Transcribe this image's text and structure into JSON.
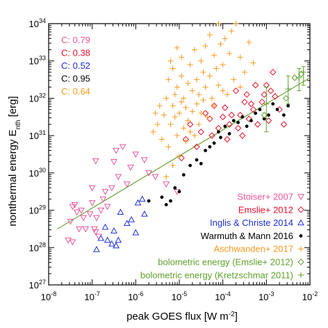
{
  "chart_data": {
    "type": "scatter",
    "xlabel": "peak GOES flux [W m",
    "xlabel_exp": "-2",
    "xlabel_end": "]",
    "ylabel": "nonthermal energy E",
    "ylabel_sub": "nth",
    "ylabel_end": " [erg]",
    "xscale": "log",
    "yscale": "log",
    "xlim_exp": [
      -8,
      -2
    ],
    "ylim_exp": [
      27,
      34
    ],
    "x_ticks": [
      {
        "base": "10",
        "exp": "-8"
      },
      {
        "base": "10",
        "exp": "-7"
      },
      {
        "base": "10",
        "exp": "-6"
      },
      {
        "base": "10",
        "exp": "-5"
      },
      {
        "base": "10",
        "exp": "-4"
      },
      {
        "base": "10",
        "exp": "-3"
      },
      {
        "base": "10",
        "exp": "-2"
      }
    ],
    "y_ticks": [
      {
        "base": "10",
        "exp": "27"
      },
      {
        "base": "10",
        "exp": "28"
      },
      {
        "base": "10",
        "exp": "29"
      },
      {
        "base": "10",
        "exp": "30"
      },
      {
        "base": "10",
        "exp": "31"
      },
      {
        "base": "10",
        "exp": "32"
      },
      {
        "base": "10",
        "exp": "33"
      },
      {
        "base": "10",
        "exp": "34"
      }
    ],
    "fit_line": {
      "color": "#5fa12b",
      "points": [
        [
          -7.8,
          28.5
        ],
        [
          -2.0,
          32.55
        ]
      ]
    },
    "correlations": [
      {
        "text": "C: 0.79",
        "color": "#e8559b"
      },
      {
        "text": "C: 0.38",
        "color": "#e8102a"
      },
      {
        "text": "C: 0.52",
        "color": "#1c2fd6"
      },
      {
        "text": "C: 0.95",
        "color": "#000000"
      },
      {
        "text": "C: 0.64",
        "color": "#f59a1f"
      }
    ],
    "series": [
      {
        "name": "Stoiser+ 2007",
        "color": "#e8559b",
        "marker": "triangle-down",
        "points": [
          [
            -7.55,
            28.2
          ],
          [
            -7.5,
            28.7
          ],
          [
            -7.45,
            29.1
          ],
          [
            -7.4,
            29.15
          ],
          [
            -7.35,
            28.95
          ],
          [
            -7.3,
            28.5
          ],
          [
            -7.25,
            29.0
          ],
          [
            -7.2,
            28.8
          ],
          [
            -7.15,
            28.5
          ],
          [
            -7.05,
            28.9
          ],
          [
            -7.0,
            29.2
          ],
          [
            -6.95,
            28.5
          ],
          [
            -6.9,
            28.8
          ],
          [
            -6.85,
            28.3
          ],
          [
            -6.8,
            29.0
          ],
          [
            -6.75,
            29.3
          ],
          [
            -6.7,
            29.5
          ],
          [
            -6.65,
            29.1
          ],
          [
            -6.55,
            29.6
          ],
          [
            -6.5,
            30.3
          ],
          [
            -6.45,
            30.6
          ],
          [
            -6.4,
            29.9
          ],
          [
            -6.3,
            30.7
          ],
          [
            -6.2,
            29.7
          ],
          [
            -6.0,
            30.5
          ],
          [
            -5.8,
            30.35
          ],
          [
            -5.7,
            30.0
          ],
          [
            -5.55,
            29.9
          ],
          [
            -5.3,
            29.7
          ],
          [
            -5.05,
            29.5
          ],
          [
            -6.92,
            30.32
          ],
          [
            -7.0,
            29.6
          ],
          [
            -6.92,
            28.42
          ],
          [
            -7.45,
            28.15
          ],
          [
            -6.12,
            30.15
          ]
        ]
      },
      {
        "name": "Emslie+ 2012",
        "color": "#e8102a",
        "marker": "diamond",
        "points": [
          [
            -4.95,
            30.4
          ],
          [
            -4.85,
            30.9
          ],
          [
            -4.75,
            31.3
          ],
          [
            -4.6,
            30.7
          ],
          [
            -4.5,
            31.1
          ],
          [
            -4.4,
            31.6
          ],
          [
            -4.3,
            31.45
          ],
          [
            -4.2,
            31.8
          ],
          [
            -4.1,
            31.2
          ],
          [
            -4.0,
            31.5
          ],
          [
            -3.95,
            31.75
          ],
          [
            -3.9,
            30.9
          ],
          [
            -3.85,
            31.3
          ],
          [
            -3.8,
            31.55
          ],
          [
            -3.7,
            32.2
          ],
          [
            -3.65,
            31.2
          ],
          [
            -3.6,
            31.55
          ],
          [
            -3.55,
            31.0
          ],
          [
            -3.5,
            31.9
          ],
          [
            -3.45,
            32.1
          ],
          [
            -3.4,
            31.45
          ],
          [
            -3.3,
            31.7
          ],
          [
            -3.25,
            32.35
          ],
          [
            -3.2,
            31.3
          ],
          [
            -3.1,
            31.9
          ],
          [
            -3.05,
            32.1
          ],
          [
            -3.0,
            32.35
          ],
          [
            -2.95,
            31.4
          ],
          [
            -2.9,
            32.2
          ],
          [
            -2.85,
            32.7
          ],
          [
            -2.8,
            32.05
          ],
          [
            -2.7,
            31.7
          ],
          [
            -2.6,
            31.3
          ],
          [
            -3.35,
            31.85
          ],
          [
            -4.25,
            31.0
          ]
        ]
      },
      {
        "name": "Inglis & Christe 2014",
        "color": "#1c2fd6",
        "marker": "triangle-up",
        "points": [
          [
            -6.9,
            27.95
          ],
          [
            -6.8,
            28.25
          ],
          [
            -6.7,
            28.55
          ],
          [
            -6.65,
            28.2
          ],
          [
            -6.55,
            28.1
          ],
          [
            -6.5,
            28.45
          ],
          [
            -6.45,
            28.05
          ],
          [
            -6.4,
            28.2
          ],
          [
            -6.35,
            28.95
          ],
          [
            -6.2,
            28.65
          ],
          [
            -6.1,
            28.75
          ],
          [
            -6.0,
            28.4
          ],
          [
            -5.95,
            29.2
          ],
          [
            -5.85,
            29.3
          ],
          [
            -5.8,
            28.9
          ]
        ]
      },
      {
        "name": "Warmuth & Mann 2016",
        "color": "#000000",
        "marker": "dot",
        "points": [
          [
            -5.7,
            29.25
          ],
          [
            -5.4,
            29.35
          ],
          [
            -5.3,
            29.15
          ],
          [
            -5.2,
            29.25
          ],
          [
            -5.1,
            29.6
          ],
          [
            -5.0,
            29.5
          ],
          [
            -4.9,
            29.95
          ],
          [
            -4.75,
            30.2
          ],
          [
            -4.6,
            30.35
          ],
          [
            -4.5,
            30.25
          ],
          [
            -4.4,
            30.6
          ],
          [
            -4.3,
            30.7
          ],
          [
            -4.2,
            30.8
          ],
          [
            -4.1,
            31.1
          ],
          [
            -4.05,
            30.95
          ],
          [
            -3.95,
            31.25
          ],
          [
            -3.85,
            31.05
          ],
          [
            -3.75,
            31.4
          ],
          [
            -3.65,
            31.35
          ],
          [
            -3.55,
            31.5
          ],
          [
            -3.45,
            31.25
          ],
          [
            -3.35,
            31.4
          ],
          [
            -3.25,
            31.6
          ],
          [
            -3.15,
            31.7
          ],
          [
            -3.05,
            31.45
          ],
          [
            -2.95,
            31.55
          ],
          [
            -2.85,
            31.85
          ],
          [
            -2.75,
            31.7
          ],
          [
            -2.6,
            31.55
          ],
          [
            -2.5,
            31.8
          ]
        ]
      },
      {
        "name": "Aschwanden+ 2017",
        "color": "#f59a1f",
        "marker": "plus",
        "points": [
          [
            -5.25,
            30.7
          ],
          [
            -5.2,
            31.3
          ],
          [
            -5.15,
            31.8
          ],
          [
            -5.15,
            30.2
          ],
          [
            -5.1,
            31.5
          ],
          [
            -5.1,
            32.1
          ],
          [
            -5.05,
            31.0
          ],
          [
            -5.05,
            32.3
          ],
          [
            -5.0,
            31.6
          ],
          [
            -5.0,
            30.45
          ],
          [
            -4.95,
            31.9
          ],
          [
            -4.95,
            32.6
          ],
          [
            -4.9,
            31.2
          ],
          [
            -4.9,
            32.0
          ],
          [
            -4.85,
            31.75
          ],
          [
            -4.85,
            30.85
          ],
          [
            -4.8,
            32.4
          ],
          [
            -4.8,
            31.4
          ],
          [
            -4.75,
            32.9
          ],
          [
            -4.75,
            31.1
          ],
          [
            -4.7,
            32.2
          ],
          [
            -4.7,
            31.65
          ],
          [
            -4.65,
            33.3
          ],
          [
            -4.65,
            31.0
          ],
          [
            -4.6,
            32.5
          ],
          [
            -4.6,
            31.85
          ],
          [
            -4.55,
            32.1
          ],
          [
            -4.55,
            31.3
          ],
          [
            -4.5,
            33.0
          ],
          [
            -4.5,
            31.6
          ],
          [
            -4.45,
            32.7
          ],
          [
            -4.45,
            31.95
          ],
          [
            -4.4,
            33.4
          ],
          [
            -4.4,
            32.3
          ],
          [
            -4.35,
            31.5
          ],
          [
            -4.3,
            33.7
          ],
          [
            -4.3,
            32.6
          ],
          [
            -4.25,
            32.0
          ],
          [
            -4.2,
            33.15
          ],
          [
            -4.2,
            31.8
          ],
          [
            -4.15,
            32.8
          ],
          [
            -4.1,
            34.0
          ],
          [
            -4.1,
            32.35
          ],
          [
            -4.05,
            33.45
          ],
          [
            -4.0,
            32.9
          ],
          [
            -3.95,
            33.6
          ],
          [
            -3.9,
            32.1
          ],
          [
            -3.85,
            33.2
          ],
          [
            -3.8,
            33.8
          ],
          [
            -3.75,
            32.5
          ],
          [
            -3.7,
            34.0
          ],
          [
            -3.6,
            33.1
          ],
          [
            -3.5,
            32.7
          ],
          [
            -3.4,
            33.5
          ],
          [
            -3.3,
            32.95
          ],
          [
            -5.5,
            31.3
          ],
          [
            -5.45,
            31.8
          ],
          [
            -5.4,
            30.9
          ],
          [
            -5.35,
            31.55
          ],
          [
            -5.3,
            32.0
          ],
          [
            -5.6,
            31.1
          ],
          [
            -5.55,
            31.6
          ],
          [
            -5.25,
            32.5
          ],
          [
            -5.2,
            33.0
          ],
          [
            -5.15,
            32.8
          ],
          [
            -5.05,
            33.35
          ],
          [
            -4.95,
            33.1
          ],
          [
            -5.3,
            29.9
          ],
          [
            -4.0,
            32.2
          ],
          [
            -3.6,
            32.3
          ]
        ]
      },
      {
        "name": "bolometric energy (Emslie+ 2012)",
        "color": "#5fa12b",
        "marker": "diamond",
        "points": [
          [
            -3.05,
            31.55
          ],
          [
            -2.55,
            32.0
          ],
          [
            -2.35,
            32.55
          ],
          [
            -2.2,
            32.65
          ]
        ]
      },
      {
        "name": "bolometric energy (Kretzschmar 2011)",
        "color": "#5fa12b",
        "marker": "plus",
        "errorbars": true,
        "points": [
          [
            -3.0,
            31.85,
            31.1,
            32.3
          ],
          [
            -2.5,
            32.25,
            31.85,
            32.6
          ],
          [
            -2.25,
            32.55,
            32.2,
            32.8
          ],
          [
            -2.15,
            32.7,
            32.35,
            32.85
          ]
        ]
      }
    ],
    "legend_position": "bottom-right"
  }
}
